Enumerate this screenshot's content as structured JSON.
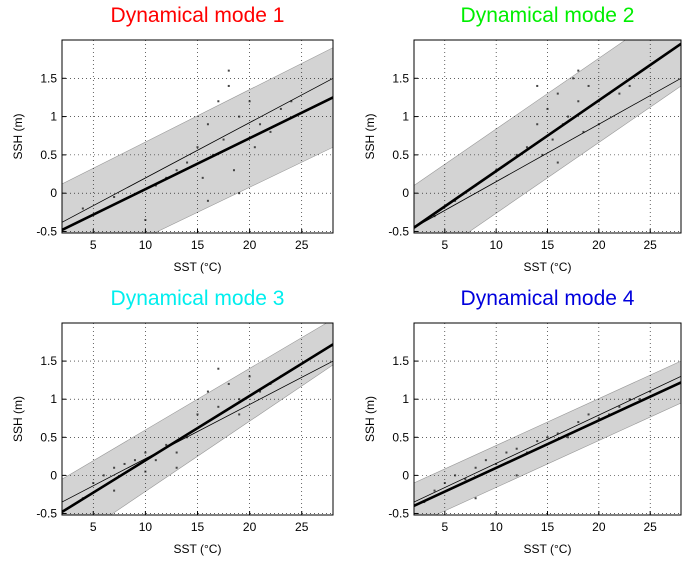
{
  "chart_data": [
    {
      "type": "scatter",
      "title": "Dynamical mode 1",
      "title_color": "#ff0000",
      "xlabel": "SST (°C)",
      "ylabel": "SSH (m)",
      "xlim": [
        2,
        28
      ],
      "ylim": [
        -0.52,
        2
      ],
      "xticks": [
        5,
        10,
        15,
        20,
        25
      ],
      "yticks": [
        -0.5,
        0,
        0.5,
        1,
        1.5
      ],
      "grid": true,
      "band": {
        "x": [
          2,
          28
        ],
        "upper": [
          0.12,
          1.9
        ],
        "lower": [
          -1.1,
          0.6
        ],
        "color": "#d3d3d3"
      },
      "points": {
        "x": [
          4,
          7,
          10,
          12,
          13,
          14,
          15,
          15.5,
          16,
          16.5,
          17,
          17.5,
          18,
          18.5,
          19,
          19,
          20,
          20.5,
          21,
          22,
          23,
          24,
          11,
          18,
          16
        ],
        "y": [
          -0.2,
          -0.05,
          -0.35,
          0.2,
          0.3,
          0.4,
          0.6,
          0.2,
          0.9,
          0.5,
          1.2,
          0.7,
          1.4,
          0.3,
          1.0,
          0.0,
          1.2,
          0.6,
          0.9,
          0.8,
          1.1,
          1.2,
          0.1,
          1.6,
          -0.1
        ],
        "color": "#444444"
      },
      "thin": {
        "x": [
          2,
          28
        ],
        "y": [
          -0.38,
          1.5
        ],
        "color": "#000000"
      },
      "fit": {
        "x": [
          2,
          28
        ],
        "y": [
          -0.48,
          1.25
        ],
        "color": "#000000"
      }
    },
    {
      "type": "scatter",
      "title": "Dynamical mode 2",
      "title_color": "#00ee00",
      "xlabel": "SST (°C)",
      "ylabel": "SSH (m)",
      "xlim": [
        2,
        28
      ],
      "ylim": [
        -0.52,
        2
      ],
      "xticks": [
        5,
        10,
        15,
        20,
        25
      ],
      "yticks": [
        -0.5,
        0,
        0.5,
        1,
        1.5
      ],
      "grid": true,
      "band": {
        "x": [
          2,
          28
        ],
        "upper": [
          0.1,
          2.5
        ],
        "lower": [
          -1.0,
          1.4
        ],
        "color": "#d3d3d3"
      },
      "points": {
        "x": [
          4,
          6,
          8,
          10,
          12,
          13,
          14,
          14.5,
          15,
          15.5,
          16,
          16.5,
          17,
          17.5,
          18,
          18.5,
          19,
          20,
          21,
          22,
          23,
          14,
          18,
          16,
          20
        ],
        "y": [
          -0.3,
          -0.1,
          0.1,
          0.3,
          0.5,
          0.6,
          0.9,
          0.5,
          1.1,
          0.7,
          1.3,
          0.9,
          1.0,
          1.5,
          1.2,
          0.8,
          1.4,
          1.2,
          1.3,
          1.3,
          1.4,
          1.4,
          1.6,
          0.4,
          0.9
        ],
        "color": "#444444"
      },
      "thin": {
        "x": [
          2,
          28
        ],
        "y": [
          -0.45,
          1.5
        ],
        "color": "#000000"
      },
      "fit": {
        "x": [
          2,
          28
        ],
        "y": [
          -0.45,
          1.95
        ],
        "color": "#000000"
      }
    },
    {
      "type": "scatter",
      "title": "Dynamical mode 3",
      "title_color": "#00eeee",
      "xlabel": "SST (°C)",
      "ylabel": "SSH (m)",
      "xlim": [
        2,
        28
      ],
      "ylim": [
        -0.52,
        2
      ],
      "xticks": [
        5,
        10,
        15,
        20,
        25
      ],
      "yticks": [
        -0.5,
        0,
        0.5,
        1,
        1.5
      ],
      "grid": true,
      "band": {
        "x": [
          2,
          28
        ],
        "upper": [
          -0.05,
          2.05
        ],
        "lower": [
          -0.95,
          1.45
        ],
        "color": "#d3d3d3"
      },
      "points": {
        "x": [
          4,
          5,
          6,
          7,
          8,
          9,
          10,
          11,
          12,
          13,
          14,
          15,
          16,
          17,
          18,
          19,
          20,
          21,
          22,
          7,
          10,
          13,
          17,
          19,
          23
        ],
        "y": [
          -0.3,
          -0.1,
          0.0,
          0.1,
          0.15,
          0.2,
          0.3,
          0.2,
          0.4,
          0.3,
          0.5,
          0.8,
          1.1,
          0.9,
          1.2,
          1.0,
          1.3,
          1.1,
          1.2,
          -0.2,
          0.05,
          0.1,
          1.4,
          0.8,
          1.3
        ],
        "color": "#444444"
      },
      "thin": {
        "x": [
          2,
          28
        ],
        "y": [
          -0.35,
          1.5
        ],
        "color": "#000000"
      },
      "fit": {
        "x": [
          2,
          28
        ],
        "y": [
          -0.48,
          1.72
        ],
        "color": "#000000"
      }
    },
    {
      "type": "scatter",
      "title": "Dynamical mode 4",
      "title_color": "#0000dd",
      "xlabel": "SST (°C)",
      "ylabel": "SSH (m)",
      "xlim": [
        2,
        28
      ],
      "ylim": [
        -0.52,
        2
      ],
      "xticks": [
        5,
        10,
        15,
        20,
        25
      ],
      "yticks": [
        -0.5,
        0,
        0.5,
        1,
        1.5
      ],
      "grid": true,
      "band": {
        "x": [
          2,
          28
        ],
        "upper": [
          -0.1,
          1.5
        ],
        "lower": [
          -0.65,
          0.95
        ],
        "color": "#d3d3d3"
      },
      "points": {
        "x": [
          3,
          4,
          5,
          6,
          7,
          8,
          9,
          10,
          11,
          12,
          13,
          14,
          15,
          16,
          17,
          18,
          19,
          20,
          21,
          22,
          23,
          24,
          25,
          8,
          12
        ],
        "y": [
          -0.35,
          -0.2,
          -0.1,
          0.0,
          -0.05,
          0.1,
          0.2,
          0.15,
          0.3,
          0.35,
          0.3,
          0.45,
          0.5,
          0.55,
          0.5,
          0.7,
          0.8,
          0.75,
          0.8,
          0.9,
          1.0,
          1.0,
          1.1,
          -0.3,
          0.0
        ],
        "color": "#444444"
      },
      "thin": {
        "x": [
          2,
          28
        ],
        "y": [
          -0.35,
          1.3
        ],
        "color": "#000000"
      },
      "fit": {
        "x": [
          2,
          28
        ],
        "y": [
          -0.4,
          1.22
        ],
        "color": "#000000"
      }
    }
  ]
}
